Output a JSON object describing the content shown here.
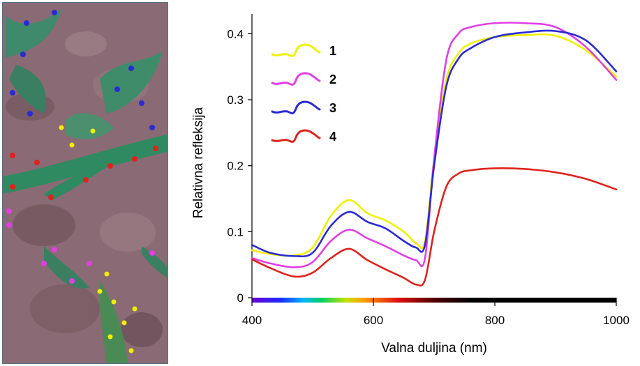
{
  "colors": {
    "series_1": "#f0f000",
    "series_2": "#e23ee6",
    "series_3": "#2a2ad4",
    "series_4": "#e0221c",
    "soil": "#8a6a74",
    "leaf": "#2f8a62"
  },
  "chart_data": {
    "type": "line",
    "xlabel": "Valna duljina (nm)",
    "ylabel": "Relativna refleksija",
    "xlim": [
      400,
      1000
    ],
    "ylim": [
      0,
      0.43
    ],
    "xticks": [
      "400",
      "600",
      "800",
      "1000"
    ],
    "yticks": [
      "0",
      "0.1",
      "0.2",
      "0.3",
      "0.4"
    ],
    "legend_placement": "top-left",
    "grid": false,
    "series": [
      {
        "name": "1",
        "x": [
          400,
          430,
          470,
          500,
          530,
          560,
          590,
          620,
          650,
          670,
          685,
          700,
          720,
          740,
          760,
          800,
          850,
          900,
          950,
          1000
        ],
        "y": [
          0.072,
          0.066,
          0.064,
          0.076,
          0.124,
          0.148,
          0.128,
          0.117,
          0.1,
          0.083,
          0.086,
          0.21,
          0.33,
          0.37,
          0.385,
          0.395,
          0.398,
          0.397,
          0.375,
          0.335
        ]
      },
      {
        "name": "2",
        "x": [
          400,
          430,
          470,
          500,
          530,
          560,
          590,
          620,
          650,
          670,
          685,
          700,
          720,
          740,
          760,
          800,
          850,
          900,
          950,
          1000
        ],
        "y": [
          0.06,
          0.052,
          0.046,
          0.054,
          0.086,
          0.103,
          0.09,
          0.078,
          0.064,
          0.057,
          0.06,
          0.21,
          0.36,
          0.4,
          0.41,
          0.416,
          0.416,
          0.41,
          0.38,
          0.33
        ]
      },
      {
        "name": "3",
        "x": [
          400,
          430,
          470,
          500,
          530,
          560,
          590,
          620,
          650,
          670,
          685,
          700,
          720,
          740,
          760,
          800,
          850,
          900,
          950,
          1000
        ],
        "y": [
          0.08,
          0.068,
          0.063,
          0.068,
          0.109,
          0.13,
          0.115,
          0.105,
          0.086,
          0.076,
          0.08,
          0.2,
          0.32,
          0.362,
          0.378,
          0.395,
          0.402,
          0.404,
          0.39,
          0.343
        ]
      },
      {
        "name": "4",
        "x": [
          400,
          430,
          470,
          500,
          530,
          560,
          590,
          620,
          650,
          670,
          685,
          700,
          720,
          740,
          760,
          800,
          850,
          900,
          950,
          1000
        ],
        "y": [
          0.058,
          0.045,
          0.032,
          0.038,
          0.06,
          0.074,
          0.057,
          0.043,
          0.03,
          0.02,
          0.027,
          0.1,
          0.168,
          0.188,
          0.193,
          0.196,
          0.195,
          0.19,
          0.18,
          0.164
        ]
      }
    ]
  }
}
